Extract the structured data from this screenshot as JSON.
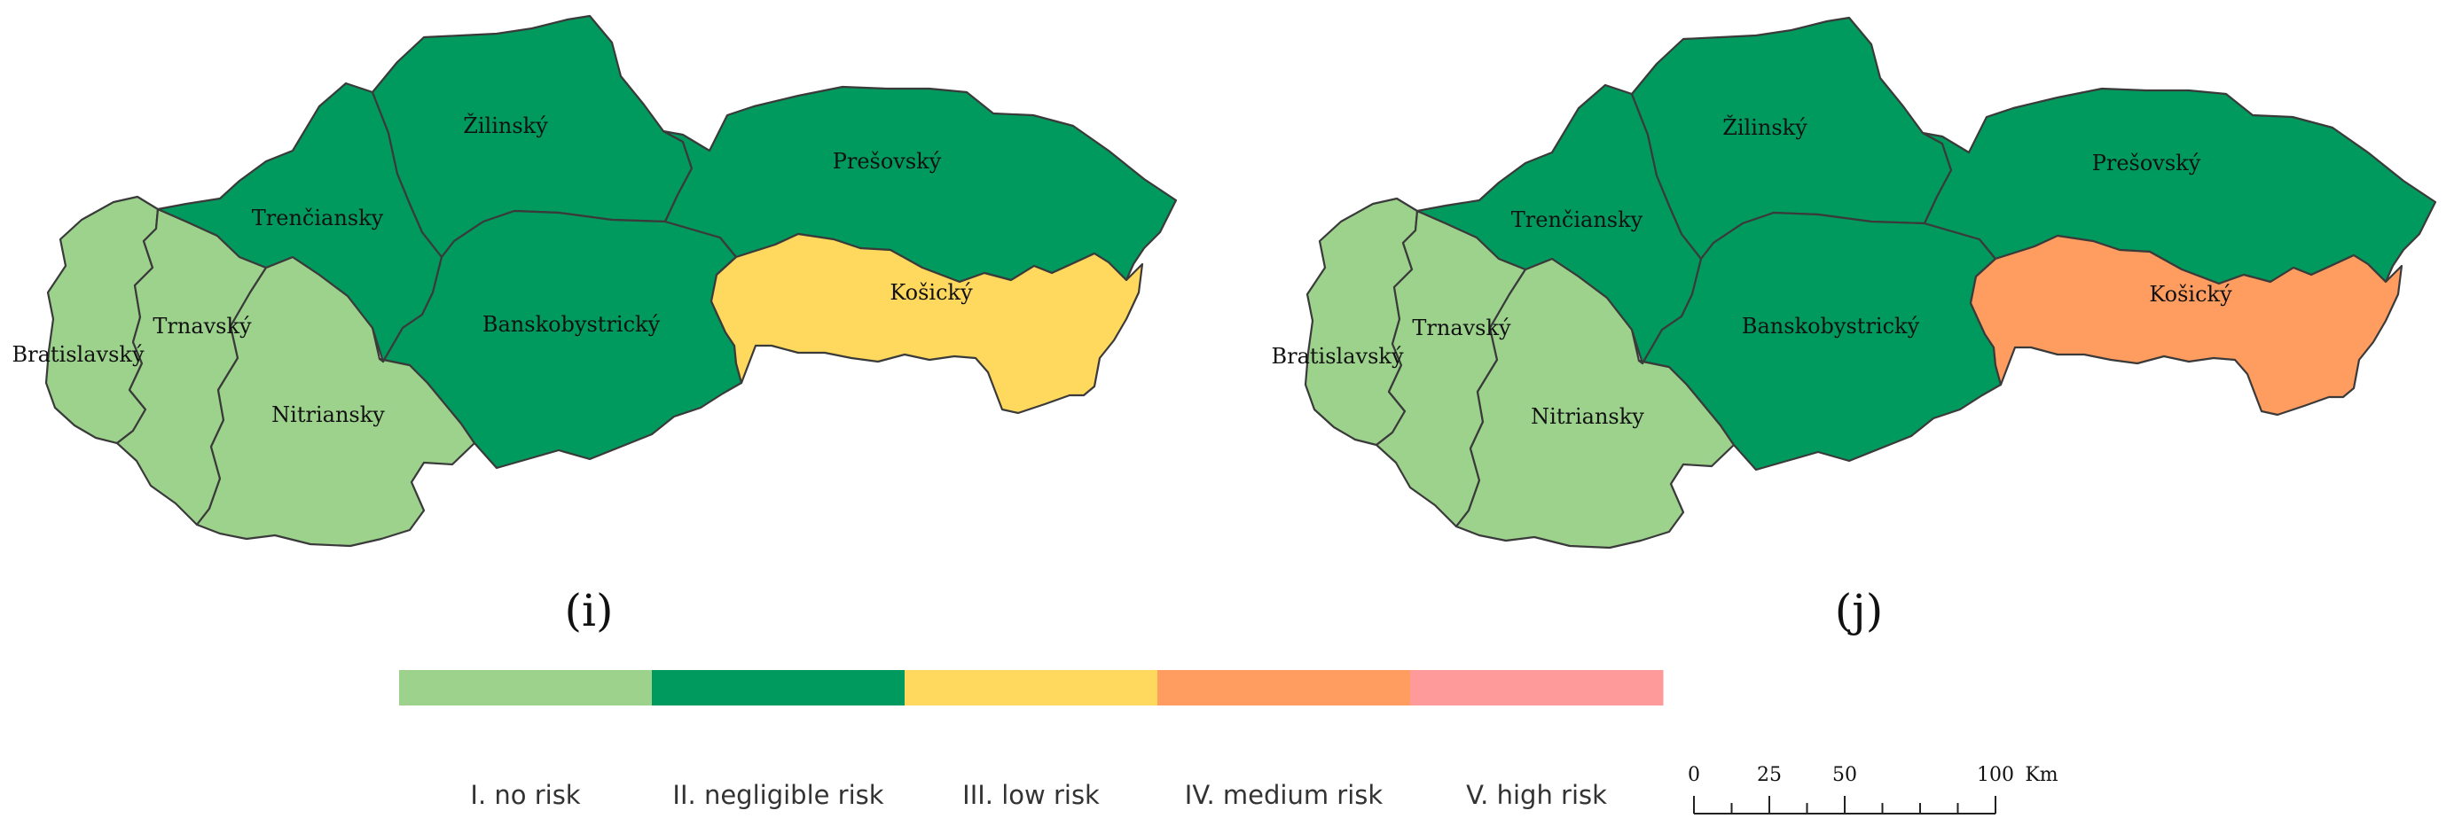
{
  "maps": [
    {
      "panel_label": "(i)",
      "panel_letter": "i",
      "regions": [
        {
          "name": "Bratislavský",
          "risk_class": "I. no risk",
          "color": "#9cd28c"
        },
        {
          "name": "Trnavský",
          "risk_class": "I. no risk",
          "color": "#9cd28c"
        },
        {
          "name": "Nitriansky",
          "risk_class": "I. no risk",
          "color": "#9cd28c"
        },
        {
          "name": "Trenčiansky",
          "risk_class": "II. negligible risk",
          "color": "#009a5e"
        },
        {
          "name": "Žilinský",
          "risk_class": "II. negligible risk",
          "color": "#009a5e"
        },
        {
          "name": "Banskobystrický",
          "risk_class": "II. negligible risk",
          "color": "#009a5e"
        },
        {
          "name": "Prešovský",
          "risk_class": "II. negligible risk",
          "color": "#009a5e"
        },
        {
          "name": "Košický",
          "risk_class": "III. low risk",
          "color": "#ffd95e"
        }
      ]
    },
    {
      "panel_label": "(j)",
      "panel_letter": "j",
      "regions": [
        {
          "name": "Bratislavský",
          "risk_class": "I. no risk",
          "color": "#9cd28c"
        },
        {
          "name": "Trnavský",
          "risk_class": "I. no risk",
          "color": "#9cd28c"
        },
        {
          "name": "Nitriansky",
          "risk_class": "I. no risk",
          "color": "#9cd28c"
        },
        {
          "name": "Trenčiansky",
          "risk_class": "II. negligible risk",
          "color": "#009a5e"
        },
        {
          "name": "Žilinský",
          "risk_class": "II. negligible risk",
          "color": "#009a5e"
        },
        {
          "name": "Banskobystrický",
          "risk_class": "II. negligible risk",
          "color": "#009a5e"
        },
        {
          "name": "Prešovský",
          "risk_class": "II. negligible risk",
          "color": "#009a5e"
        },
        {
          "name": "Košický",
          "risk_class": "IV. medium risk",
          "color": "#ff9c60"
        }
      ]
    }
  ],
  "legend": [
    {
      "label": "I. no risk",
      "color": "#9cd28c"
    },
    {
      "label": "II. negligible risk",
      "color": "#009a5e"
    },
    {
      "label": "III. low risk",
      "color": "#ffd95e"
    },
    {
      "label": "IV. medium risk",
      "color": "#ff9c60"
    },
    {
      "label": "V. high risk",
      "color": "#ff9a9a"
    }
  ],
  "scale_bar": {
    "labels": [
      "0",
      "25",
      "50",
      "100"
    ],
    "unit": "Km"
  }
}
